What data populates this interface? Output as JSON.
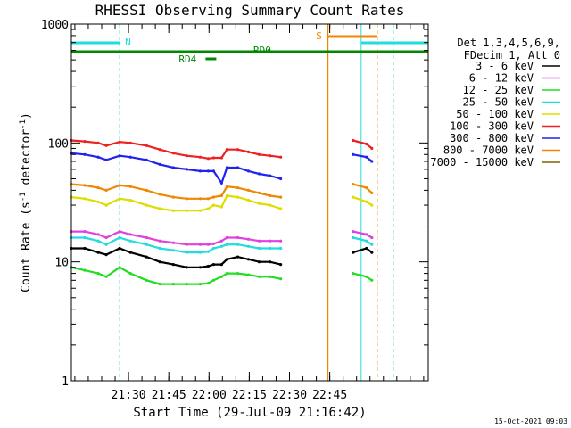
{
  "chart_data": {
    "type": "line",
    "title": "RHESSI Observing Summary Count Rates",
    "xlabel": "Start Time (29-Jul-09 21:16:42)",
    "ylabel_main": "Count Rate (s",
    "ylabel_sup1": "-1",
    "ylabel_mid": " detector",
    "ylabel_sup2": "-1",
    "ylabel_end": ")",
    "y_scale": "log",
    "ylim": [
      1,
      1000
    ],
    "xlim_min": [
      -8,
      125
    ],
    "x_ticks": [
      {
        "label": "21:30",
        "min": 13.3
      },
      {
        "label": "21:45",
        "min": 28.3
      },
      {
        "label": "22:00",
        "min": 43.3
      },
      {
        "label": "22:15",
        "min": 58.3
      },
      {
        "label": "22:30",
        "min": 73.3
      },
      {
        "label": "22:45",
        "min": 88.3
      }
    ],
    "y_ticks": [
      {
        "label": "1",
        "value": 1
      },
      {
        "label": "10",
        "value": 10
      },
      {
        "label": "100",
        "value": 100
      },
      {
        "label": "1000",
        "value": 1000
      }
    ],
    "legend_header": [
      "Det 1,3,4,5,6,9,",
      "FDecim 1, Att 0"
    ],
    "legend_position": "right",
    "series": [
      {
        "name": "3 - 6 keV",
        "color": "#000000",
        "values": [
          13,
          13,
          12,
          11.5,
          13,
          12,
          11,
          10,
          9.5,
          9,
          9,
          9.2,
          9.5,
          9.5,
          10.5,
          11,
          10.5,
          10,
          10,
          9.5,
          12,
          13,
          12
        ]
      },
      {
        "name": "6 - 12 keV",
        "color": "#e040e0",
        "values": [
          18,
          18,
          17,
          16,
          18,
          17,
          16,
          15,
          14.5,
          14,
          14,
          14,
          14.2,
          15,
          16,
          16,
          15.5,
          15,
          15,
          15,
          18,
          17,
          16
        ]
      },
      {
        "name": "12 - 25 keV",
        "color": "#22dd22",
        "values": [
          9,
          8.5,
          8,
          7.5,
          9,
          8,
          7,
          6.5,
          6.5,
          6.5,
          6.5,
          6.6,
          7,
          7.5,
          8,
          8,
          7.8,
          7.5,
          7.5,
          7.2,
          8,
          7.5,
          7
        ]
      },
      {
        "name": "25 - 50 keV",
        "color": "#22dddd",
        "values": [
          16,
          16,
          15,
          14,
          16,
          15,
          14,
          13,
          12.5,
          12,
          12,
          12.2,
          13,
          13.5,
          14,
          14,
          13.5,
          13,
          13,
          13,
          16,
          15,
          14
        ]
      },
      {
        "name": "50 - 100 keV",
        "color": "#dddd00",
        "values": [
          35,
          34,
          32,
          30,
          34,
          33,
          30,
          28,
          27,
          27,
          27,
          28,
          30,
          29,
          36,
          35,
          33,
          31,
          30,
          28,
          35,
          32,
          30
        ]
      },
      {
        "name": "100 - 300 keV",
        "color": "#ee2020",
        "values": [
          105,
          103,
          100,
          95,
          102,
          100,
          95,
          88,
          82,
          78,
          76,
          74,
          75,
          75,
          88,
          88,
          84,
          80,
          78,
          76,
          105,
          98,
          90
        ]
      },
      {
        "name": "300 - 800 keV",
        "color": "#2222ee",
        "values": [
          82,
          80,
          76,
          72,
          78,
          76,
          72,
          66,
          62,
          60,
          58,
          58,
          58,
          46,
          62,
          62,
          58,
          55,
          53,
          50,
          80,
          76,
          70
        ]
      },
      {
        "name": "800 - 7000 keV",
        "color": "#ee8800",
        "values": [
          45,
          44,
          42,
          40,
          44,
          43,
          40,
          37,
          35,
          34,
          34,
          34,
          35,
          36,
          43,
          42,
          40,
          38,
          36,
          35,
          45,
          42,
          38
        ]
      },
      {
        "name": "7000 - 15000 keV",
        "color": "#806000",
        "values": []
      }
    ],
    "series_x_min": [
      -8,
      -3,
      2,
      5,
      10,
      14,
      20,
      25,
      30,
      35,
      40,
      43,
      45,
      48,
      50,
      54,
      58,
      62,
      66,
      70,
      97,
      102,
      104
    ],
    "flags": [
      {
        "label": "N",
        "color": "#22dddd"
      },
      {
        "label": "S",
        "color": "#ee8800"
      },
      {
        "label": "RD0",
        "color": "#008800"
      },
      {
        "label": "RD4",
        "color": "#008800"
      }
    ],
    "footer_date": "15-Oct-2021 09:03"
  }
}
